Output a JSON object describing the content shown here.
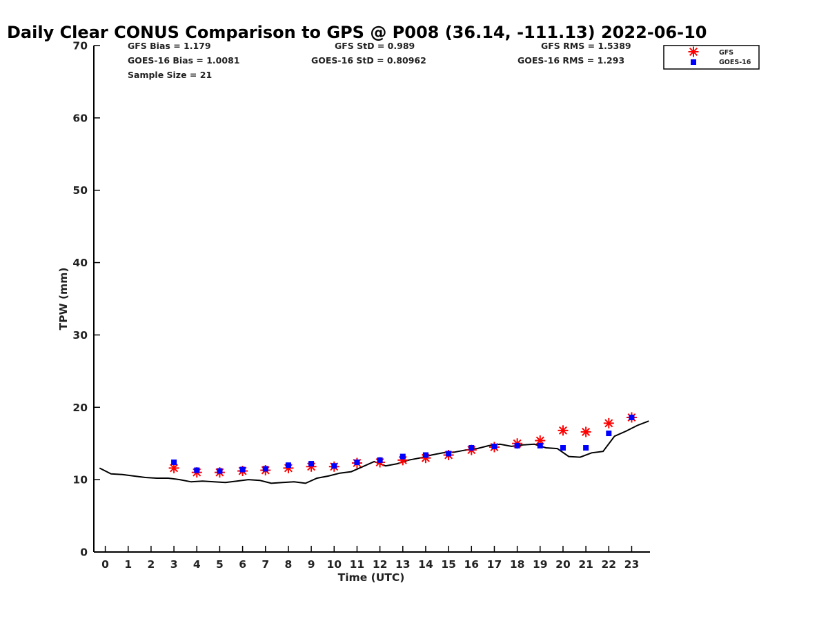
{
  "chart_data": {
    "type": "line",
    "title": "Daily Clear CONUS Comparison to GPS @ P008 (36.14, -111.13) 2022-06-10",
    "xlabel": "Time (UTC)",
    "ylabel": "TPW (mm)",
    "xlim": [
      -0.5,
      23.8
    ],
    "ylim": [
      0,
      70
    ],
    "xticks": [
      0,
      1,
      2,
      3,
      4,
      5,
      6,
      7,
      8,
      9,
      10,
      11,
      12,
      13,
      14,
      15,
      16,
      17,
      18,
      19,
      20,
      21,
      22,
      23
    ],
    "yticks": [
      0,
      10,
      20,
      30,
      40,
      50,
      60,
      70
    ],
    "grid": false,
    "legend_position": "top-right",
    "stats": {
      "gfs_bias": "GFS Bias = 1.179",
      "goes_bias": "GOES-16 Bias = 1.0081",
      "sample_size": "Sample Size = 21",
      "gfs_std": "GFS StD = 0.989",
      "goes_std": "GOES-16 StD = 0.80962",
      "gfs_rms": "GFS RMS = 1.5389",
      "goes_rms": "GOES-16 RMS = 1.293"
    },
    "series": [
      {
        "style": "line",
        "color": "#000000",
        "x": [
          -0.25,
          0.25,
          0.75,
          1.25,
          1.75,
          2.25,
          2.75,
          3.25,
          3.75,
          4.25,
          4.75,
          5.25,
          5.75,
          6.25,
          6.75,
          7.25,
          7.75,
          8.25,
          8.75,
          9.25,
          9.75,
          10.25,
          10.75,
          11.25,
          11.75,
          12.25,
          12.75,
          13.25,
          13.75,
          14.25,
          14.75,
          15.25,
          15.75,
          16.25,
          16.75,
          17.25,
          17.75,
          18.25,
          18.75,
          19.25,
          19.75,
          20.25,
          20.75,
          21.25,
          21.75,
          22.25,
          22.75,
          23.25,
          23.75
        ],
        "values": [
          11.6,
          10.8,
          10.7,
          10.5,
          10.3,
          10.2,
          10.2,
          10.0,
          9.7,
          9.8,
          9.7,
          9.6,
          9.8,
          10.0,
          9.9,
          9.5,
          9.6,
          9.7,
          9.5,
          10.2,
          10.5,
          10.9,
          11.1,
          11.8,
          12.5,
          11.9,
          12.2,
          12.7,
          13.0,
          13.4,
          13.7,
          13.8,
          14.1,
          14.3,
          14.7,
          14.9,
          14.6,
          14.8,
          14.9,
          14.4,
          14.3,
          13.2,
          13.1,
          13.7,
          13.9,
          16.0,
          16.7,
          17.5,
          18.1
        ]
      },
      {
        "name": "GFS",
        "style": "asterisk",
        "color": "#ff0000",
        "x": [
          3,
          4,
          5,
          6,
          7,
          8,
          9,
          10,
          11,
          12,
          13,
          14,
          15,
          16,
          17,
          18,
          19,
          20,
          21,
          22,
          23
        ],
        "values": [
          11.6,
          11.0,
          11.0,
          11.2,
          11.3,
          11.6,
          11.8,
          11.8,
          12.3,
          12.4,
          12.7,
          13.0,
          13.4,
          14.1,
          14.5,
          15.0,
          15.4,
          16.8,
          16.6,
          17.8,
          18.6
        ]
      },
      {
        "name": "GOES-16",
        "style": "square",
        "color": "#0000ff",
        "x": [
          3,
          4,
          5,
          6,
          7,
          8,
          9,
          10,
          11,
          12,
          13,
          14,
          15,
          16,
          17,
          18,
          19,
          20,
          21,
          22,
          23
        ],
        "values": [
          12.4,
          11.3,
          11.2,
          11.4,
          11.5,
          12.0,
          12.2,
          11.9,
          12.4,
          12.7,
          13.2,
          13.4,
          13.6,
          14.4,
          14.6,
          14.7,
          14.7,
          14.4,
          14.4,
          16.4,
          18.6
        ]
      }
    ]
  }
}
